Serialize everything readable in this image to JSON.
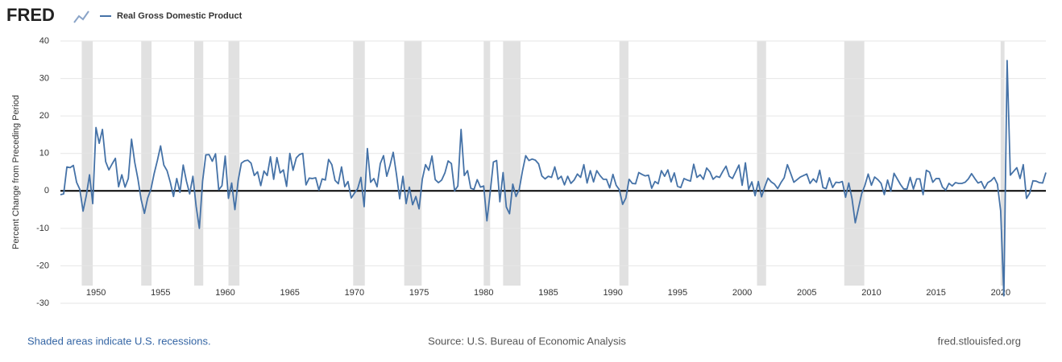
{
  "chart_data": {
    "type": "line",
    "logo": "FRED",
    "y_label": "Percent Change from Preceding Period",
    "footer_left": "Shaded areas indicate U.S. recessions.",
    "source": "Source: U.S. Bureau of Economic Analysis",
    "footer_right": "fred.stlouisfed.org",
    "xlim": [
      1947.25,
      2023.5
    ],
    "xticks": [
      1950,
      1955,
      1960,
      1965,
      1970,
      1975,
      1980,
      1985,
      1990,
      1995,
      2000,
      2005,
      2010,
      2015,
      2020
    ],
    "ylim": [
      -30,
      40
    ],
    "yticks": [
      -30,
      -20,
      -10,
      0,
      10,
      20,
      30,
      40
    ],
    "grid": true,
    "recessions": [
      [
        1948.9,
        1949.75
      ],
      [
        1953.5,
        1954.3
      ],
      [
        1957.6,
        1958.3
      ],
      [
        1960.25,
        1961.1
      ],
      [
        1969.9,
        1970.8
      ],
      [
        1973.85,
        1975.2
      ],
      [
        1980.0,
        1980.5
      ],
      [
        1981.5,
        1982.85
      ],
      [
        1990.5,
        1991.2
      ],
      [
        2001.15,
        2001.85
      ],
      [
        2007.9,
        2009.45
      ],
      [
        2020.0,
        2020.3
      ]
    ],
    "series": [
      {
        "name": "Real Gross Domestic Product",
        "color": "#4572a7",
        "x": [
          1947.25,
          1947.5,
          1947.75,
          1948,
          1948.25,
          1948.5,
          1948.75,
          1949,
          1949.25,
          1949.5,
          1949.75,
          1950,
          1950.25,
          1950.5,
          1950.75,
          1951,
          1951.25,
          1951.5,
          1951.75,
          1952,
          1952.25,
          1952.5,
          1952.75,
          1953,
          1953.25,
          1953.5,
          1953.75,
          1954,
          1954.25,
          1954.5,
          1954.75,
          1955,
          1955.25,
          1955.5,
          1955.75,
          1956,
          1956.25,
          1956.5,
          1956.75,
          1957,
          1957.25,
          1957.5,
          1957.75,
          1958,
          1958.25,
          1958.5,
          1958.75,
          1959,
          1959.25,
          1959.5,
          1959.75,
          1960,
          1960.25,
          1960.5,
          1960.75,
          1961,
          1961.25,
          1961.5,
          1961.75,
          1962,
          1962.25,
          1962.5,
          1962.75,
          1963,
          1963.25,
          1963.5,
          1963.75,
          1964,
          1964.25,
          1964.5,
          1964.75,
          1965,
          1965.25,
          1965.5,
          1965.75,
          1966,
          1966.25,
          1966.5,
          1966.75,
          1967,
          1967.25,
          1967.5,
          1967.75,
          1968,
          1968.25,
          1968.5,
          1968.75,
          1969,
          1969.25,
          1969.5,
          1969.75,
          1970,
          1970.25,
          1970.5,
          1970.75,
          1971,
          1971.25,
          1971.5,
          1971.75,
          1972,
          1972.25,
          1972.5,
          1972.75,
          1973,
          1973.25,
          1973.5,
          1973.75,
          1974,
          1974.25,
          1974.5,
          1974.75,
          1975,
          1975.25,
          1975.5,
          1975.75,
          1976,
          1976.25,
          1976.5,
          1976.75,
          1977,
          1977.25,
          1977.5,
          1977.75,
          1978,
          1978.25,
          1978.5,
          1978.75,
          1979,
          1979.25,
          1979.5,
          1979.75,
          1980,
          1980.25,
          1980.5,
          1980.75,
          1981,
          1981.25,
          1981.5,
          1981.75,
          1982,
          1982.25,
          1982.5,
          1982.75,
          1983,
          1983.25,
          1983.5,
          1983.75,
          1984,
          1984.25,
          1984.5,
          1984.75,
          1985,
          1985.25,
          1985.5,
          1985.75,
          1986,
          1986.25,
          1986.5,
          1986.75,
          1987,
          1987.25,
          1987.5,
          1987.75,
          1988,
          1988.25,
          1988.5,
          1988.75,
          1989,
          1989.25,
          1989.5,
          1989.75,
          1990,
          1990.25,
          1990.5,
          1990.75,
          1991,
          1991.25,
          1991.5,
          1991.75,
          1992,
          1992.25,
          1992.5,
          1992.75,
          1993,
          1993.25,
          1993.5,
          1993.75,
          1994,
          1994.25,
          1994.5,
          1994.75,
          1995,
          1995.25,
          1995.5,
          1995.75,
          1996,
          1996.25,
          1996.5,
          1996.75,
          1997,
          1997.25,
          1997.5,
          1997.75,
          1998,
          1998.25,
          1998.5,
          1998.75,
          1999,
          1999.25,
          1999.5,
          1999.75,
          2000,
          2000.25,
          2000.5,
          2000.75,
          2001,
          2001.25,
          2001.5,
          2001.75,
          2002,
          2002.25,
          2002.5,
          2002.75,
          2003,
          2003.25,
          2003.5,
          2003.75,
          2004,
          2004.25,
          2004.5,
          2004.75,
          2005,
          2005.25,
          2005.5,
          2005.75,
          2006,
          2006.25,
          2006.5,
          2006.75,
          2007,
          2007.25,
          2007.5,
          2007.75,
          2008,
          2008.25,
          2008.5,
          2008.75,
          2009,
          2009.25,
          2009.5,
          2009.75,
          2010,
          2010.25,
          2010.5,
          2010.75,
          2011,
          2011.25,
          2011.5,
          2011.75,
          2012,
          2012.25,
          2012.5,
          2012.75,
          2013,
          2013.25,
          2013.5,
          2013.75,
          2014,
          2014.25,
          2014.5,
          2014.75,
          2015,
          2015.25,
          2015.5,
          2015.75,
          2016,
          2016.25,
          2016.5,
          2016.75,
          2017,
          2017.25,
          2017.5,
          2017.75,
          2018,
          2018.25,
          2018.5,
          2018.75,
          2019,
          2019.25,
          2019.5,
          2019.75,
          2020,
          2020.25,
          2020.5,
          2020.75,
          2021,
          2021.25,
          2021.5,
          2021.75,
          2022,
          2022.25,
          2022.5,
          2022.75,
          2023,
          2023.25,
          2023.5
        ],
        "values": [
          -1.0,
          -0.8,
          6.4,
          6.2,
          6.8,
          2.3,
          0.4,
          -5.4,
          -1.3,
          4.3,
          -3.4,
          16.9,
          12.7,
          16.4,
          7.8,
          5.6,
          7.2,
          8.7,
          1.1,
          4.3,
          1.0,
          3.3,
          13.8,
          7.6,
          3.1,
          -2.4,
          -6.0,
          -1.9,
          0.4,
          4.6,
          8.1,
          12.0,
          6.9,
          5.4,
          2.3,
          -1.5,
          3.3,
          -0.4,
          6.9,
          2.6,
          -0.8,
          3.9,
          -4.1,
          -10.0,
          2.6,
          9.6,
          9.7,
          7.9,
          9.9,
          0.3,
          1.4,
          9.3,
          -2.0,
          2.1,
          -5.0,
          2.7,
          7.4,
          8.0,
          8.2,
          7.4,
          4.1,
          5.1,
          1.4,
          5.3,
          4.1,
          9.1,
          3.1,
          8.9,
          4.8,
          5.6,
          1.2,
          10.0,
          5.5,
          8.8,
          9.7,
          10.0,
          1.6,
          3.4,
          3.3,
          3.5,
          0.2,
          3.2,
          2.9,
          8.4,
          7.0,
          2.8,
          1.9,
          6.4,
          1.1,
          2.5,
          -1.9,
          -0.6,
          0.6,
          3.6,
          -4.2,
          11.3,
          2.3,
          3.3,
          1.1,
          7.3,
          9.4,
          3.9,
          6.8,
          10.3,
          4.4,
          -2.1,
          3.9,
          -3.4,
          1.0,
          -3.7,
          -1.5,
          -4.8,
          3.1,
          7.0,
          5.5,
          9.3,
          3.0,
          2.2,
          2.9,
          4.8,
          8.0,
          7.3,
          0.0,
          1.3,
          16.4,
          4.1,
          5.4,
          0.7,
          0.4,
          3.0,
          1.0,
          1.3,
          -8.0,
          -0.5,
          7.7,
          8.1,
          -2.9,
          4.9,
          -4.3,
          -6.1,
          1.8,
          -1.5,
          0.4,
          5.3,
          9.4,
          8.1,
          8.5,
          8.2,
          7.2,
          4.0,
          3.2,
          3.9,
          3.6,
          6.4,
          3.1,
          3.9,
          1.6,
          3.9,
          2.0,
          2.9,
          4.5,
          3.6,
          7.0,
          2.1,
          5.4,
          2.4,
          5.4,
          4.1,
          3.1,
          3.1,
          0.8,
          4.4,
          1.5,
          0.3,
          -3.6,
          -1.9,
          3.1,
          2.0,
          1.9,
          4.9,
          4.4,
          4.0,
          4.2,
          0.7,
          2.5,
          1.9,
          5.4,
          3.9,
          5.6,
          2.4,
          4.8,
          1.2,
          0.9,
          3.3,
          2.9,
          2.6,
          7.1,
          3.6,
          4.3,
          3.1,
          6.1,
          5.1,
          3.1,
          3.9,
          3.6,
          5.2,
          6.6,
          3.9,
          3.3,
          5.1,
          6.9,
          1.5,
          7.5,
          0.4,
          2.4,
          -1.3,
          2.5,
          -1.6,
          1.1,
          3.4,
          2.4,
          1.8,
          0.6,
          2.2,
          3.5,
          7.0,
          4.7,
          2.3,
          3.0,
          3.7,
          4.1,
          4.5,
          2.0,
          3.2,
          2.3,
          5.5,
          0.9,
          0.6,
          3.5,
          0.9,
          2.3,
          2.2,
          2.5,
          -1.7,
          2.1,
          -2.1,
          -8.5,
          -4.6,
          -0.7,
          1.5,
          4.5,
          1.5,
          3.7,
          3.0,
          2.0,
          -1.0,
          2.9,
          -0.1,
          4.7,
          3.2,
          1.7,
          0.5,
          0.5,
          3.6,
          0.5,
          3.2,
          3.2,
          -1.0,
          5.5,
          5.0,
          2.3,
          3.3,
          3.3,
          1.0,
          0.2,
          2.0,
          1.3,
          2.2,
          2.0,
          2.0,
          2.3,
          3.2,
          4.6,
          3.3,
          2.1,
          2.5,
          0.6,
          2.2,
          2.7,
          3.6,
          1.8,
          -5.3,
          -28.0,
          34.8,
          4.2,
          5.2,
          6.2,
          3.3,
          7.0,
          -2.0,
          -0.6,
          2.7,
          2.6,
          2.2,
          2.1,
          4.9
        ]
      }
    ]
  }
}
